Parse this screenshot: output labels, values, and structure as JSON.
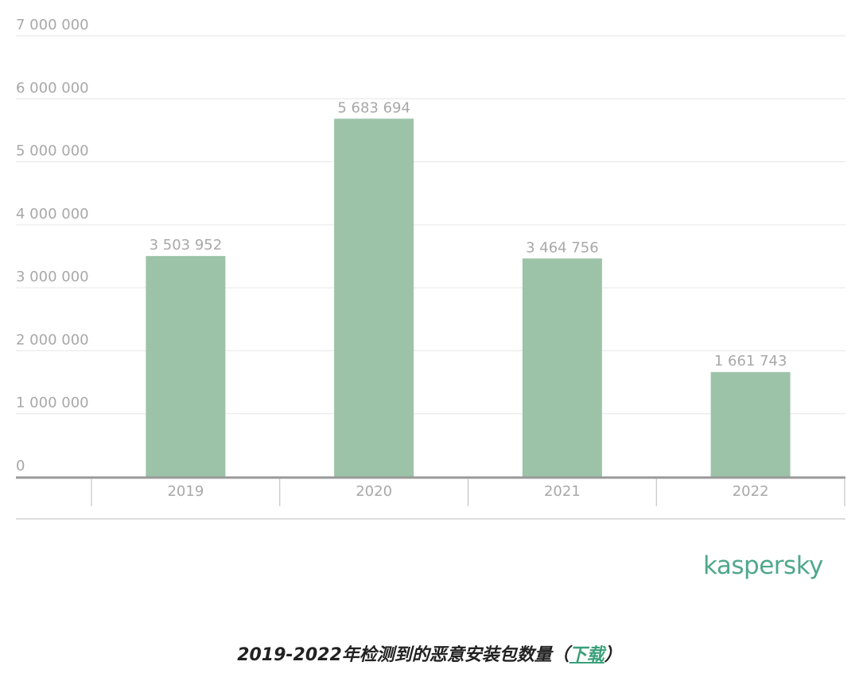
{
  "chart_data": {
    "type": "bar",
    "categories": [
      "2019",
      "2020",
      "2021",
      "2022"
    ],
    "values": [
      3503952,
      5683694,
      3464756,
      1661743
    ],
    "value_labels": [
      "3 503 952",
      "5 683 694",
      "3 464 756",
      "1 661 743"
    ],
    "color": "#9cc3a7",
    "ylim": [
      0,
      7000000
    ],
    "yticks": [
      0,
      {
        "value": 1000000,
        "label": "1 000 000"
      },
      {
        "value": 2000000,
        "label": "2 000 000"
      },
      {
        "value": 3000000,
        "label": "3 000 000"
      },
      {
        "value": 4000000,
        "label": "4 000 000"
      },
      {
        "value": 5000000,
        "label": "5 000 000"
      },
      {
        "value": 6000000,
        "label": "6 000 000"
      },
      {
        "value": 7000000,
        "label": "7 000 000"
      }
    ],
    "grid": true
  },
  "logo": "kaspersky",
  "caption": {
    "text": "2019-2022年检测到的恶意安装包数量（",
    "link": "下载",
    "end": "）"
  }
}
